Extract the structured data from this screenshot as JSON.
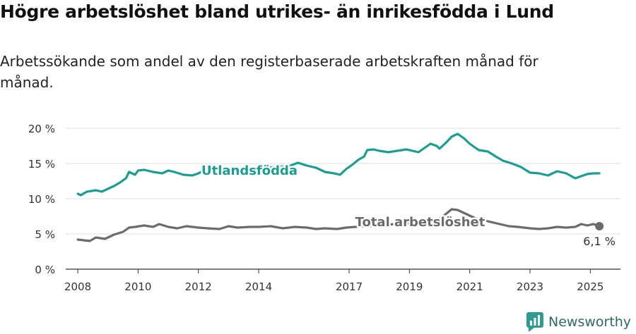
{
  "title": "Högre arbetslöshet bland utrikes- än inrikesfödda i Lund",
  "subtitle": "Arbetssökande som andel av den registerbaserade arbetskraften månad för månad.",
  "brand": {
    "name": "Newsworthy",
    "icon": "newsworthy-logo-icon",
    "color": "#2f9a8f"
  },
  "chart_data": {
    "type": "line",
    "title": "Högre arbetslöshet bland utrikes- än inrikesfödda i Lund",
    "subtitle": "Arbetssökande som andel av den registerbaserade arbetskraften månad för månad.",
    "xlabel": "",
    "ylabel": "",
    "xlim": [
      2007.6,
      2026.0
    ],
    "ylim": [
      0,
      20
    ],
    "y_ticks": [
      0,
      5,
      10,
      15,
      20
    ],
    "y_tick_labels": [
      "0 %",
      "5 %",
      "10 %",
      "15 %",
      "20 %"
    ],
    "x_ticks": [
      2008,
      2010,
      2012,
      2014,
      2017,
      2019,
      2021,
      2023,
      2025
    ],
    "x_tick_labels": [
      "2008",
      "2010",
      "2012",
      "2014",
      "2017",
      "2019",
      "2021",
      "2023",
      "2025"
    ],
    "grid": "horizontal",
    "series": [
      {
        "name": "Utlandsfödda",
        "color": "#1a9e91",
        "points": [
          [
            2008.0,
            10.7
          ],
          [
            2008.1,
            10.5
          ],
          [
            2008.3,
            11.0
          ],
          [
            2008.6,
            11.2
          ],
          [
            2008.8,
            11.0
          ],
          [
            2009.0,
            11.4
          ],
          [
            2009.2,
            11.8
          ],
          [
            2009.4,
            12.3
          ],
          [
            2009.6,
            12.9
          ],
          [
            2009.7,
            13.8
          ],
          [
            2009.9,
            13.4
          ],
          [
            2010.0,
            14.0
          ],
          [
            2010.2,
            14.1
          ],
          [
            2010.5,
            13.8
          ],
          [
            2010.8,
            13.6
          ],
          [
            2011.0,
            14.0
          ],
          [
            2011.2,
            13.8
          ],
          [
            2011.5,
            13.4
          ],
          [
            2011.8,
            13.3
          ],
          [
            2012.0,
            13.6
          ],
          [
            2012.2,
            14.0
          ],
          [
            2012.5,
            14.2
          ],
          [
            2012.7,
            14.1
          ],
          [
            2013.0,
            13.9
          ],
          [
            2013.5,
            14.1
          ],
          [
            2014.0,
            14.2
          ],
          [
            2014.5,
            14.5
          ],
          [
            2015.0,
            14.6
          ],
          [
            2015.3,
            15.1
          ],
          [
            2015.6,
            14.7
          ],
          [
            2015.9,
            14.4
          ],
          [
            2016.2,
            13.8
          ],
          [
            2016.5,
            13.6
          ],
          [
            2016.7,
            13.4
          ],
          [
            2016.9,
            14.2
          ],
          [
            2017.1,
            14.8
          ],
          [
            2017.3,
            15.5
          ],
          [
            2017.5,
            16.0
          ],
          [
            2017.6,
            16.9
          ],
          [
            2017.8,
            17.0
          ],
          [
            2018.0,
            16.8
          ],
          [
            2018.3,
            16.6
          ],
          [
            2018.6,
            16.8
          ],
          [
            2018.9,
            17.0
          ],
          [
            2019.1,
            16.8
          ],
          [
            2019.3,
            16.6
          ],
          [
            2019.5,
            17.2
          ],
          [
            2019.7,
            17.8
          ],
          [
            2019.9,
            17.5
          ],
          [
            2020.0,
            17.1
          ],
          [
            2020.2,
            17.9
          ],
          [
            2020.4,
            18.8
          ],
          [
            2020.6,
            19.2
          ],
          [
            2020.8,
            18.6
          ],
          [
            2021.0,
            17.8
          ],
          [
            2021.3,
            16.9
          ],
          [
            2021.6,
            16.7
          ],
          [
            2021.9,
            15.9
          ],
          [
            2022.1,
            15.4
          ],
          [
            2022.4,
            15.0
          ],
          [
            2022.7,
            14.5
          ],
          [
            2023.0,
            13.7
          ],
          [
            2023.3,
            13.6
          ],
          [
            2023.6,
            13.3
          ],
          [
            2023.9,
            13.9
          ],
          [
            2024.2,
            13.6
          ],
          [
            2024.5,
            12.9
          ],
          [
            2024.7,
            13.2
          ],
          [
            2024.9,
            13.5
          ],
          [
            2025.1,
            13.6
          ],
          [
            2025.3,
            13.6
          ]
        ]
      },
      {
        "name": "Total arbetslöshet",
        "color": "#6b6b6b",
        "points": [
          [
            2008.0,
            4.2
          ],
          [
            2008.2,
            4.1
          ],
          [
            2008.4,
            4.0
          ],
          [
            2008.6,
            4.5
          ],
          [
            2008.9,
            4.3
          ],
          [
            2009.2,
            4.9
          ],
          [
            2009.5,
            5.3
          ],
          [
            2009.7,
            5.9
          ],
          [
            2009.9,
            6.0
          ],
          [
            2010.2,
            6.2
          ],
          [
            2010.5,
            6.0
          ],
          [
            2010.7,
            6.4
          ],
          [
            2011.0,
            6.0
          ],
          [
            2011.3,
            5.8
          ],
          [
            2011.6,
            6.1
          ],
          [
            2012.0,
            5.9
          ],
          [
            2012.3,
            5.8
          ],
          [
            2012.7,
            5.7
          ],
          [
            2013.0,
            6.1
          ],
          [
            2013.3,
            5.9
          ],
          [
            2013.7,
            6.0
          ],
          [
            2014.0,
            6.0
          ],
          [
            2014.4,
            6.1
          ],
          [
            2014.8,
            5.8
          ],
          [
            2015.2,
            6.0
          ],
          [
            2015.6,
            5.9
          ],
          [
            2015.9,
            5.7
          ],
          [
            2016.2,
            5.8
          ],
          [
            2016.6,
            5.7
          ],
          [
            2016.9,
            5.9
          ],
          [
            2017.2,
            6.0
          ],
          [
            2017.6,
            6.1
          ],
          [
            2018.0,
            6.2
          ],
          [
            2018.5,
            6.4
          ],
          [
            2019.0,
            6.5
          ],
          [
            2019.5,
            6.7
          ],
          [
            2019.9,
            6.9
          ],
          [
            2020.2,
            7.8
          ],
          [
            2020.4,
            8.5
          ],
          [
            2020.6,
            8.4
          ],
          [
            2020.9,
            7.8
          ],
          [
            2021.2,
            7.2
          ],
          [
            2021.6,
            6.8
          ],
          [
            2022.0,
            6.4
          ],
          [
            2022.3,
            6.1
          ],
          [
            2022.6,
            6.0
          ],
          [
            2023.0,
            5.8
          ],
          [
            2023.3,
            5.7
          ],
          [
            2023.6,
            5.8
          ],
          [
            2023.9,
            6.0
          ],
          [
            2024.2,
            5.9
          ],
          [
            2024.5,
            6.0
          ],
          [
            2024.7,
            6.4
          ],
          [
            2024.9,
            6.2
          ],
          [
            2025.1,
            6.4
          ],
          [
            2025.3,
            6.1
          ]
        ],
        "end_label": "6,1 %"
      }
    ]
  }
}
